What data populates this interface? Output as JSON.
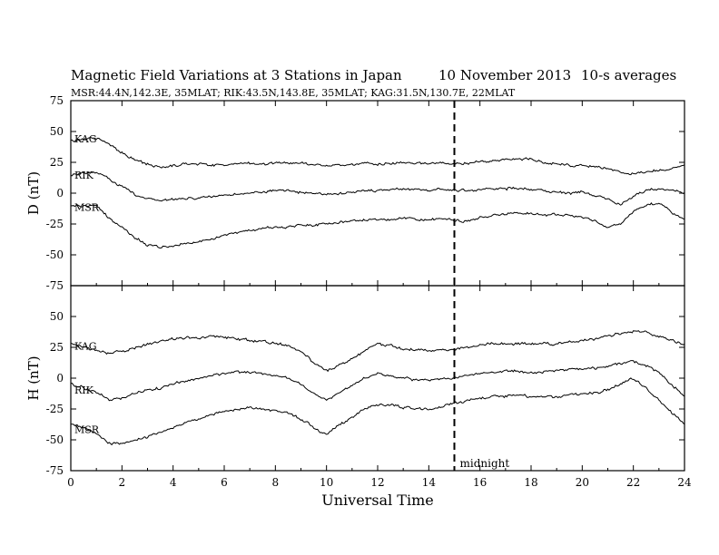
{
  "title": "Magnetic Field Variations at 3 Stations in Japan",
  "date": "10 November 2013",
  "averaging": "10-s averages",
  "stations_line": "MSR:44.4N,142.3E, 35MLAT;  RIK:43.5N,143.8E, 35MLAT;  KAG:31.5N,130.7E, 22MLAT",
  "xlabel": "Universal Time",
  "midnight_label": "midnight",
  "chart_data": [
    {
      "type": "line",
      "panel": "top",
      "ylabel": "D (nT)",
      "xlim": [
        0,
        24
      ],
      "ylim": [
        -75,
        75
      ],
      "x_ticks": [
        0,
        2,
        4,
        6,
        8,
        10,
        12,
        14,
        16,
        18,
        20,
        22,
        24
      ],
      "y_ticks": [
        -75,
        -50,
        -25,
        0,
        25,
        50,
        75
      ],
      "vline_x": 15,
      "x": [
        0,
        0.5,
        1,
        1.5,
        2,
        2.5,
        3,
        3.5,
        4,
        4.5,
        5,
        5.5,
        6,
        6.5,
        7,
        7.5,
        8,
        8.5,
        9,
        9.5,
        10,
        10.5,
        11,
        11.5,
        12,
        12.5,
        13,
        13.5,
        14,
        14.5,
        15,
        15.5,
        16,
        16.5,
        17,
        17.5,
        18,
        18.5,
        19,
        19.5,
        20,
        20.5,
        21,
        21.5,
        22,
        22.5,
        23,
        23.5,
        24
      ],
      "series": [
        {
          "name": "KAG",
          "values": [
            42,
            44,
            45,
            40,
            33,
            27,
            23,
            21,
            22,
            24,
            24,
            23,
            23,
            24,
            24,
            24,
            24,
            25,
            24,
            23,
            22,
            23,
            23,
            24,
            24,
            24,
            24,
            24,
            24,
            24,
            24,
            24,
            25,
            26,
            27,
            28,
            27,
            25,
            24,
            23,
            22,
            21,
            20,
            17,
            15,
            17,
            19,
            20,
            22
          ]
        },
        {
          "name": "RIK",
          "values": [
            15,
            16,
            17,
            12,
            5,
            -1,
            -4,
            -6,
            -5,
            -4,
            -4,
            -3,
            -2,
            -1,
            0,
            1,
            2,
            2,
            1,
            0,
            -1,
            0,
            1,
            2,
            2,
            3,
            3,
            3,
            2,
            3,
            2,
            2,
            3,
            4,
            4,
            4,
            3,
            2,
            0,
            0,
            1,
            -2,
            -5,
            -10,
            -3,
            2,
            4,
            3,
            0
          ]
        },
        {
          "name": "MSR",
          "values": [
            -10,
            -10,
            -10,
            -20,
            -28,
            -36,
            -42,
            -44,
            -43,
            -41,
            -40,
            -37,
            -34,
            -32,
            -30,
            -29,
            -28,
            -27,
            -26,
            -26,
            -25,
            -24,
            -22,
            -22,
            -21,
            -21,
            -20,
            -21,
            -22,
            -21,
            -22,
            -23,
            -20,
            -18,
            -17,
            -16,
            -17,
            -18,
            -17,
            -18,
            -19,
            -22,
            -28,
            -25,
            -15,
            -10,
            -8,
            -15,
            -22
          ]
        }
      ]
    },
    {
      "type": "line",
      "panel": "bottom",
      "ylabel": "H (nT)",
      "xlim": [
        0,
        24
      ],
      "ylim": [
        -75,
        75
      ],
      "x_ticks": [
        0,
        2,
        4,
        6,
        8,
        10,
        12,
        14,
        16,
        18,
        20,
        22,
        24
      ],
      "y_ticks": [
        -75,
        -50,
        -25,
        0,
        25,
        50,
        75
      ],
      "vline_x": 15,
      "x": [
        0,
        0.5,
        1,
        1.5,
        2,
        2.5,
        3,
        3.5,
        4,
        4.5,
        5,
        5.5,
        6,
        6.5,
        7,
        7.5,
        8,
        8.5,
        9,
        9.5,
        10,
        10.5,
        11,
        11.5,
        12,
        12.5,
        13,
        13.5,
        14,
        14.5,
        15,
        15.5,
        16,
        16.5,
        17,
        17.5,
        18,
        18.5,
        19,
        19.5,
        20,
        20.5,
        21,
        21.5,
        22,
        22.5,
        23,
        23.5,
        24
      ],
      "series": [
        {
          "name": "KAG",
          "values": [
            28,
            26,
            22,
            20,
            22,
            24,
            28,
            30,
            32,
            33,
            33,
            34,
            33,
            32,
            31,
            30,
            28,
            26,
            22,
            12,
            6,
            10,
            16,
            22,
            28,
            26,
            24,
            23,
            22,
            23,
            24,
            26,
            27,
            28,
            28,
            28,
            28,
            28,
            28,
            29,
            30,
            32,
            34,
            36,
            38,
            37,
            33,
            31,
            27
          ]
        },
        {
          "name": "RIK",
          "values": [
            -5,
            -8,
            -12,
            -18,
            -16,
            -12,
            -10,
            -8,
            -5,
            -2,
            0,
            2,
            4,
            5,
            5,
            4,
            2,
            0,
            -5,
            -12,
            -18,
            -12,
            -6,
            0,
            4,
            2,
            0,
            -1,
            -2,
            0,
            0,
            2,
            4,
            5,
            6,
            6,
            5,
            5,
            6,
            7,
            7,
            8,
            10,
            12,
            14,
            10,
            5,
            -5,
            -15
          ]
        },
        {
          "name": "MSR",
          "values": [
            -37,
            -40,
            -45,
            -53,
            -53,
            -50,
            -48,
            -44,
            -40,
            -36,
            -34,
            -30,
            -27,
            -25,
            -24,
            -25,
            -26,
            -28,
            -33,
            -40,
            -46,
            -38,
            -32,
            -25,
            -21,
            -22,
            -24,
            -25,
            -25,
            -23,
            -20,
            -18,
            -16,
            -15,
            -14,
            -14,
            -15,
            -15,
            -15,
            -14,
            -13,
            -12,
            -10,
            -5,
            0,
            -8,
            -18,
            -28,
            -37
          ]
        }
      ]
    }
  ]
}
